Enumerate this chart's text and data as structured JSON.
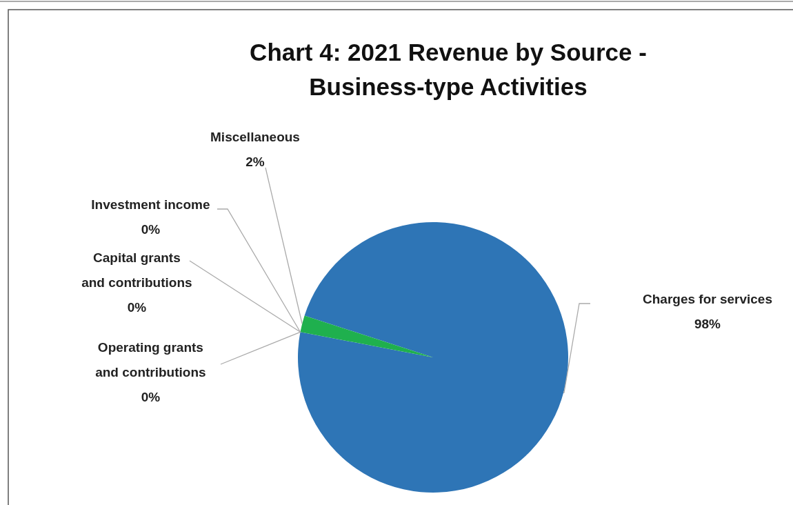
{
  "chart_data": {
    "type": "pie",
    "title": "Chart 4:  2021 Revenue by Source -\nBusiness-type  Activities",
    "categories": [
      "Charges for services",
      "Operating grants and contributions",
      "Capital grants and contributions",
      "Investment income",
      "Miscellaneous"
    ],
    "values": [
      98,
      0,
      0,
      0,
      2
    ],
    "colors": [
      "#2e75b6",
      "#ed7d31",
      "#a5a5a5",
      "#ffc000",
      "#1fb04e"
    ],
    "value_labels": [
      "98%",
      "0%",
      "0%",
      "0%",
      "2%"
    ],
    "legend": false
  }
}
